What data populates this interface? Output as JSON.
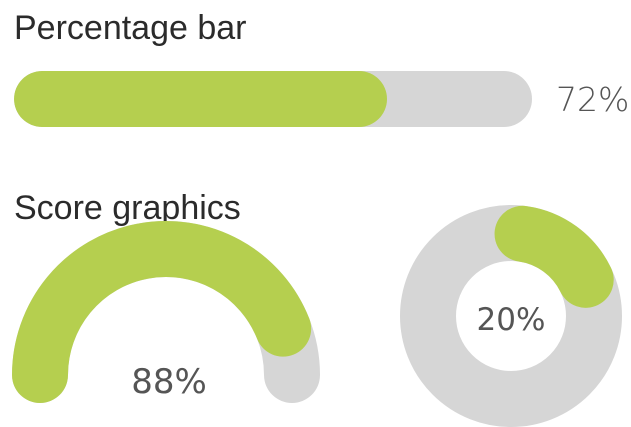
{
  "colors": {
    "accent": "#b5cf4f",
    "track": "#d6d6d6",
    "heading_text": "#2b2b2b",
    "value_text": "#555555"
  },
  "percentage_bar": {
    "heading": "Percentage bar",
    "value": 72,
    "value_label": "72%"
  },
  "score_graphics": {
    "heading": "Score graphics",
    "semicircle_gauge": {
      "value": 88,
      "value_label": "88%"
    },
    "donut": {
      "value": 20,
      "value_label": "20%"
    }
  }
}
